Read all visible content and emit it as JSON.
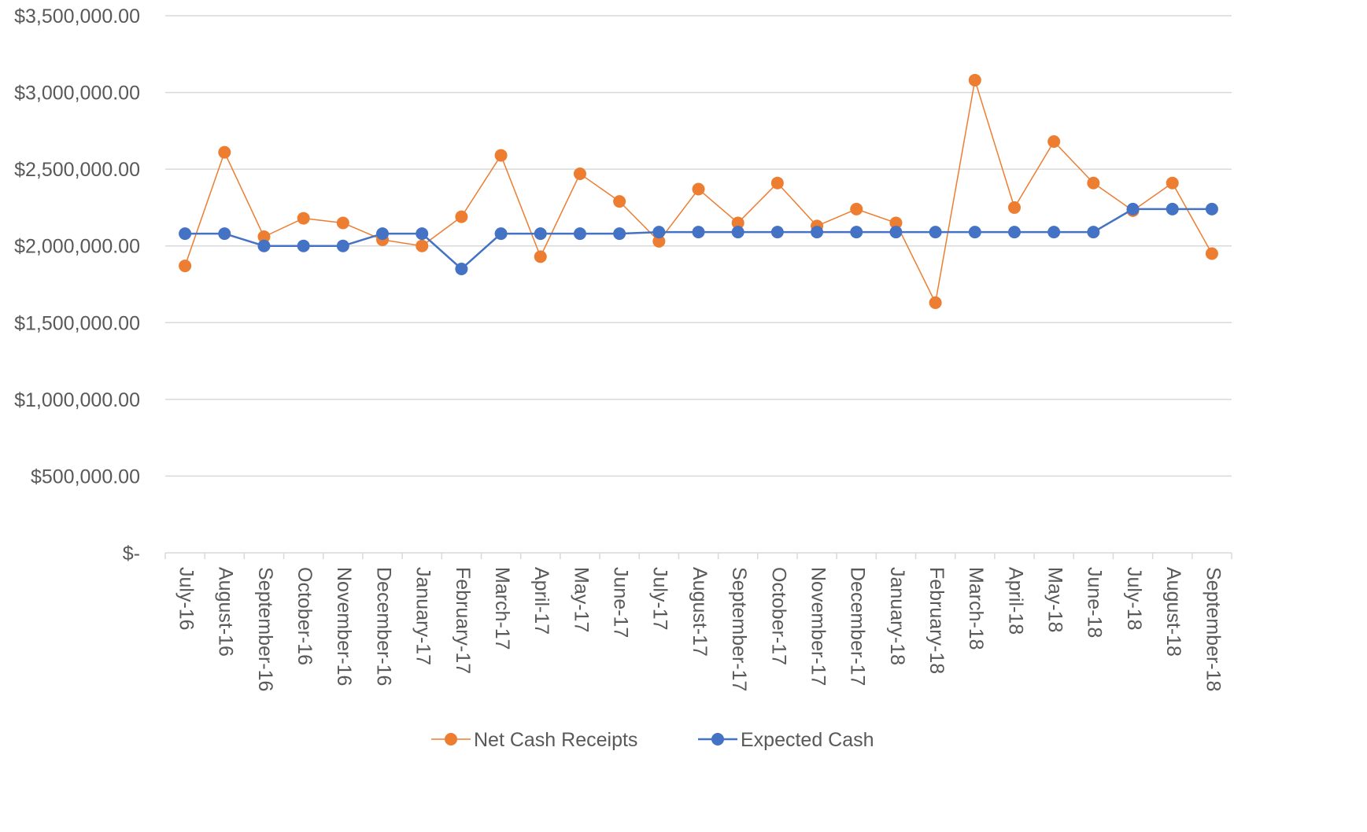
{
  "chart_data": {
    "type": "line",
    "title": "",
    "xlabel": "",
    "ylabel": "",
    "categories": [
      "July-16",
      "August-16",
      "September-16",
      "October-16",
      "November-16",
      "December-16",
      "January-17",
      "February-17",
      "March-17",
      "April-17",
      "May-17",
      "June-17",
      "July-17",
      "August-17",
      "September-17",
      "October-17",
      "November-17",
      "December-17",
      "January-18",
      "February-18",
      "March-18",
      "April-18",
      "May-18",
      "June-18",
      "July-18",
      "August-18",
      "September-18"
    ],
    "ylim": [
      0,
      3500000
    ],
    "y_ticks": [
      0,
      500000,
      1000000,
      1500000,
      2000000,
      2500000,
      3000000,
      3500000
    ],
    "y_tick_labels": [
      "$-",
      "$500,000.00",
      "$1,000,000.00",
      "$1,500,000.00",
      "$2,000,000.00",
      "$2,500,000.00",
      "$3,000,000.00",
      "$3,500,000.00"
    ],
    "grid": true,
    "legend_position": "bottom",
    "series": [
      {
        "name": "Net Cash Receipts",
        "color": "#ED7D31",
        "values": [
          1870000,
          2610000,
          2060000,
          2180000,
          2150000,
          2040000,
          2000000,
          2190000,
          2590000,
          1930000,
          2470000,
          2290000,
          2030000,
          2370000,
          2150000,
          2410000,
          2130000,
          2240000,
          2150000,
          1630000,
          3080000,
          2250000,
          2680000,
          2410000,
          2230000,
          2410000,
          1950000
        ]
      },
      {
        "name": "Expected Cash",
        "color": "#4472C4",
        "values": [
          2080000,
          2080000,
          2000000,
          2000000,
          2000000,
          2080000,
          2080000,
          1850000,
          2080000,
          2080000,
          2080000,
          2080000,
          2090000,
          2090000,
          2090000,
          2090000,
          2090000,
          2090000,
          2090000,
          2090000,
          2090000,
          2090000,
          2090000,
          2090000,
          2240000,
          2240000,
          2240000
        ]
      }
    ]
  }
}
